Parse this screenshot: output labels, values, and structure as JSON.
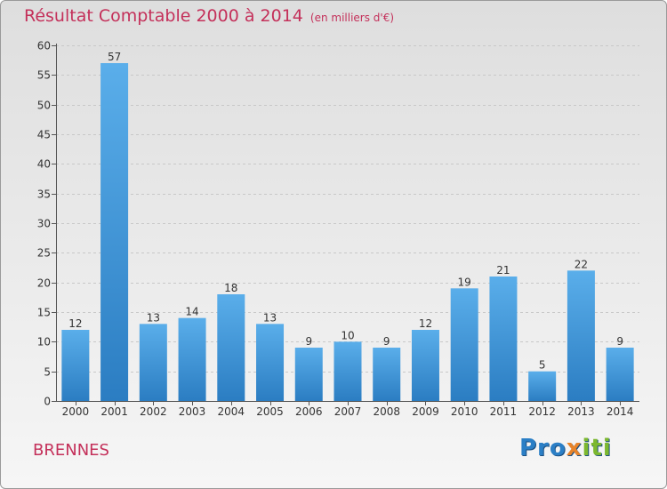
{
  "title": "Résultat Comptable 2000 à 2014",
  "unit": "(en milliers d'€)",
  "town": "BRENNES",
  "brand": {
    "p1": "Pro",
    "p2": "x",
    "p3": "iti"
  },
  "colors": {
    "bar": "#3d96dc",
    "bar_light": "#5aaeea",
    "bar_dark": "#2b7dc2",
    "title": "#c4305a",
    "grid": "#c8c8c8"
  },
  "chart_data": {
    "type": "bar",
    "title": "Résultat Comptable 2000 à 2014",
    "xlabel": "",
    "ylabel": "",
    "ylim": [
      0,
      60
    ],
    "yticks": [
      0,
      5,
      10,
      15,
      20,
      25,
      30,
      35,
      40,
      45,
      50,
      55,
      60
    ],
    "grid": true,
    "categories": [
      "2000",
      "2001",
      "2002",
      "2003",
      "2004",
      "2005",
      "2006",
      "2007",
      "2008",
      "2009",
      "2010",
      "2011",
      "2012",
      "2013",
      "2014"
    ],
    "values": [
      12,
      57,
      13,
      14,
      18,
      13,
      9,
      10,
      9,
      12,
      19,
      21,
      5,
      22,
      9
    ]
  }
}
